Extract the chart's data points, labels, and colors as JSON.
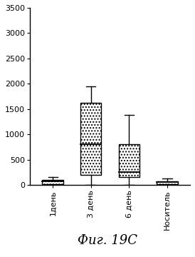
{
  "categories": [
    "1день",
    "3 день",
    "6 день",
    "Носитель"
  ],
  "boxes": [
    {
      "q1": 20,
      "median": 75,
      "q3": 105,
      "whisker_low": 0,
      "whisker_high": 155
    },
    {
      "q1": 200,
      "median": 800,
      "q3": 1625,
      "whisker_low": 0,
      "whisker_high": 1950
    },
    {
      "q1": 155,
      "median": 250,
      "q3": 800,
      "whisker_low": 0,
      "whisker_high": 1380
    },
    {
      "q1": 10,
      "median": 55,
      "q3": 80,
      "whisker_low": 0,
      "whisker_high": 130
    }
  ],
  "ylim": [
    0,
    3500
  ],
  "yticks": [
    0,
    500,
    1000,
    1500,
    2000,
    2500,
    3000,
    3500
  ],
  "caption": "Фиг. 19C",
  "fig_facecolor": "white",
  "bar_width": 0.55
}
